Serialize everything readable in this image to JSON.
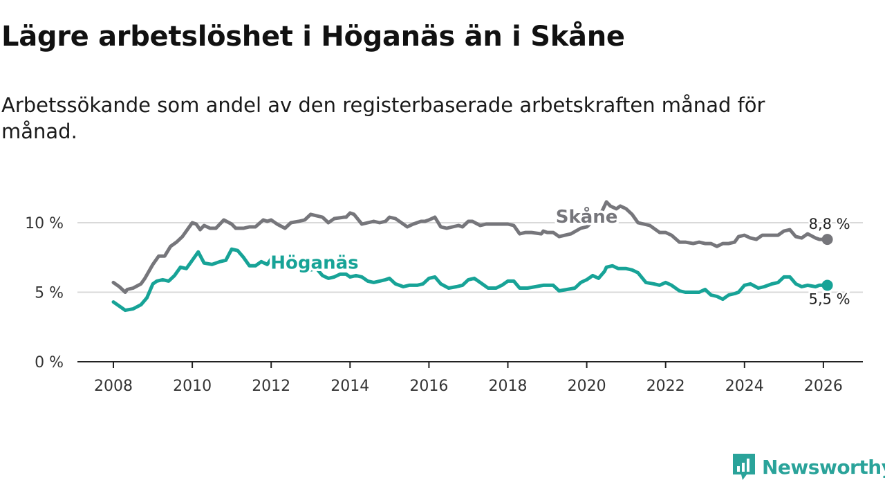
{
  "title": "Lägre arbetslöshet i Höganäs än i Skåne",
  "subtitle": "Arbetssökande som andel av den registerbaserade arbetskraften månad för månad.",
  "brand": {
    "name": "Newsworthy",
    "icon": "newsworthy-logo-icon",
    "color": "#2aa39a"
  },
  "chart_data": {
    "type": "line",
    "title": "Lägre arbetslöshet i Höganäs än i Skåne",
    "xlabel": "",
    "ylabel": "",
    "xlim": [
      2007.3,
      2027.0
    ],
    "ylim": [
      0,
      11.5
    ],
    "x_ticks": [
      {
        "value": 2008,
        "label": "2008"
      },
      {
        "value": 2010,
        "label": "2010"
      },
      {
        "value": 2012,
        "label": "2012"
      },
      {
        "value": 2014,
        "label": "2014"
      },
      {
        "value": 2016,
        "label": "2016"
      },
      {
        "value": 2018,
        "label": "2018"
      },
      {
        "value": 2020,
        "label": "2020"
      },
      {
        "value": 2022,
        "label": "2022"
      },
      {
        "value": 2024,
        "label": "2024"
      },
      {
        "value": 2026,
        "label": "2026"
      }
    ],
    "y_ticks": [
      {
        "value": 0,
        "label": "0 %"
      },
      {
        "value": 5,
        "label": "5 %"
      },
      {
        "value": 10,
        "label": "10 %"
      }
    ],
    "series": [
      {
        "name": "Skåne",
        "color": "#76767b",
        "end_label": "8,8 %",
        "x": [
          2008.0,
          2008.15,
          2008.3,
          2008.35,
          2008.5,
          2008.7,
          2008.8,
          2009.0,
          2009.15,
          2009.3,
          2009.45,
          2009.6,
          2009.75,
          2009.9,
          2010.0,
          2010.1,
          2010.2,
          2010.3,
          2010.45,
          2010.6,
          2010.8,
          2011.0,
          2011.1,
          2011.3,
          2011.45,
          2011.6,
          2011.8,
          2011.9,
          2012.0,
          2012.15,
          2012.35,
          2012.5,
          2012.7,
          2012.85,
          2013.0,
          2013.15,
          2013.3,
          2013.45,
          2013.6,
          2013.85,
          2013.9,
          2014.0,
          2014.1,
          2014.3,
          2014.45,
          2014.6,
          2014.75,
          2014.9,
          2015.0,
          2015.15,
          2015.3,
          2015.45,
          2015.6,
          2015.8,
          2015.9,
          2016.0,
          2016.15,
          2016.3,
          2016.45,
          2016.6,
          2016.75,
          2016.85,
          2017.0,
          2017.1,
          2017.3,
          2017.45,
          2017.6,
          2017.85,
          2018.0,
          2018.15,
          2018.3,
          2018.45,
          2018.6,
          2018.85,
          2018.9,
          2019.0,
          2019.15,
          2019.3,
          2019.45,
          2019.6,
          2019.85,
          2020.0,
          2020.15,
          2020.25,
          2020.4,
          2020.5,
          2020.6,
          2020.75,
          2020.85,
          2021.0,
          2021.15,
          2021.3,
          2021.45,
          2021.6,
          2021.85,
          2022.0,
          2022.15,
          2022.35,
          2022.5,
          2022.7,
          2022.85,
          2023.0,
          2023.15,
          2023.3,
          2023.45,
          2023.6,
          2023.75,
          2023.85,
          2024.0,
          2024.15,
          2024.3,
          2024.45,
          2024.6,
          2024.85,
          2025.0,
          2025.15,
          2025.3,
          2025.45,
          2025.6,
          2025.8,
          2025.9,
          2026.0,
          2026.1
        ],
        "values": [
          5.7,
          5.4,
          5.0,
          5.2,
          5.3,
          5.6,
          6.0,
          7.0,
          7.6,
          7.6,
          8.3,
          8.6,
          9.0,
          9.6,
          10.0,
          9.9,
          9.5,
          9.8,
          9.6,
          9.6,
          10.2,
          9.9,
          9.6,
          9.6,
          9.7,
          9.7,
          10.2,
          10.1,
          10.2,
          9.9,
          9.6,
          10.0,
          10.1,
          10.2,
          10.6,
          10.5,
          10.4,
          10.0,
          10.3,
          10.4,
          10.4,
          10.7,
          10.6,
          9.9,
          10.0,
          10.1,
          10.0,
          10.1,
          10.4,
          10.3,
          10.0,
          9.7,
          9.9,
          10.1,
          10.1,
          10.2,
          10.4,
          9.7,
          9.6,
          9.7,
          9.8,
          9.7,
          10.1,
          10.1,
          9.8,
          9.9,
          9.9,
          9.9,
          9.9,
          9.8,
          9.2,
          9.3,
          9.3,
          9.2,
          9.4,
          9.3,
          9.3,
          9.0,
          9.1,
          9.2,
          9.6,
          9.7,
          10.1,
          10.2,
          10.9,
          11.5,
          11.2,
          11.0,
          11.2,
          11.0,
          10.6,
          10.0,
          9.9,
          9.8,
          9.3,
          9.3,
          9.1,
          8.6,
          8.6,
          8.5,
          8.6,
          8.5,
          8.5,
          8.3,
          8.5,
          8.5,
          8.6,
          9.0,
          9.1,
          8.9,
          8.8,
          9.1,
          9.1,
          9.1,
          9.4,
          9.5,
          9.0,
          8.9,
          9.2,
          8.9,
          8.8,
          8.8,
          8.8
        ]
      },
      {
        "name": "Höganäs",
        "color": "#17a397",
        "end_label": "5,5 %",
        "x": [
          2008.0,
          2008.15,
          2008.3,
          2008.5,
          2008.7,
          2008.85,
          2009.0,
          2009.1,
          2009.25,
          2009.4,
          2009.55,
          2009.7,
          2009.85,
          2010.0,
          2010.15,
          2010.3,
          2010.5,
          2010.7,
          2010.85,
          2011.0,
          2011.15,
          2011.3,
          2011.45,
          2011.6,
          2011.75,
          2011.9,
          2012.0,
          2012.15,
          2012.35,
          2012.5,
          2012.65,
          2012.75,
          2012.9,
          2013.0,
          2013.15,
          2013.3,
          2013.45,
          2013.6,
          2013.75,
          2013.9,
          2014.0,
          2014.15,
          2014.3,
          2014.45,
          2014.6,
          2014.75,
          2014.9,
          2015.0,
          2015.15,
          2015.35,
          2015.5,
          2015.7,
          2015.85,
          2016.0,
          2016.15,
          2016.3,
          2016.5,
          2016.7,
          2016.85,
          2017.0,
          2017.15,
          2017.3,
          2017.5,
          2017.7,
          2017.85,
          2018.0,
          2018.15,
          2018.3,
          2018.5,
          2018.7,
          2018.9,
          2019.0,
          2019.15,
          2019.3,
          2019.5,
          2019.7,
          2019.85,
          2020.0,
          2020.15,
          2020.3,
          2020.45,
          2020.5,
          2020.65,
          2020.8,
          2021.0,
          2021.15,
          2021.3,
          2021.5,
          2021.7,
          2021.85,
          2022.0,
          2022.15,
          2022.35,
          2022.5,
          2022.7,
          2022.85,
          2023.0,
          2023.15,
          2023.3,
          2023.45,
          2023.6,
          2023.75,
          2023.85,
          2024.0,
          2024.15,
          2024.35,
          2024.5,
          2024.7,
          2024.85,
          2025.0,
          2025.15,
          2025.3,
          2025.45,
          2025.6,
          2025.8,
          2025.9,
          2026.0,
          2026.1
        ],
        "values": [
          4.3,
          4.0,
          3.7,
          3.8,
          4.1,
          4.6,
          5.6,
          5.8,
          5.9,
          5.8,
          6.2,
          6.8,
          6.7,
          7.3,
          7.9,
          7.1,
          7.0,
          7.2,
          7.3,
          8.1,
          8.0,
          7.5,
          6.9,
          6.9,
          7.2,
          7.0,
          7.4,
          7.4,
          6.9,
          6.8,
          7.0,
          7.1,
          6.9,
          6.6,
          6.7,
          6.2,
          6.0,
          6.1,
          6.3,
          6.3,
          6.1,
          6.2,
          6.1,
          5.8,
          5.7,
          5.8,
          5.9,
          6.0,
          5.6,
          5.4,
          5.5,
          5.5,
          5.6,
          6.0,
          6.1,
          5.6,
          5.3,
          5.4,
          5.5,
          5.9,
          6.0,
          5.7,
          5.3,
          5.3,
          5.5,
          5.8,
          5.8,
          5.3,
          5.3,
          5.4,
          5.5,
          5.5,
          5.5,
          5.1,
          5.2,
          5.3,
          5.7,
          5.9,
          6.2,
          6.0,
          6.5,
          6.8,
          6.9,
          6.7,
          6.7,
          6.6,
          6.4,
          5.7,
          5.6,
          5.5,
          5.7,
          5.5,
          5.1,
          5.0,
          5.0,
          5.0,
          5.2,
          4.8,
          4.7,
          4.5,
          4.8,
          4.9,
          5.0,
          5.5,
          5.6,
          5.3,
          5.4,
          5.6,
          5.7,
          6.1,
          6.1,
          5.6,
          5.4,
          5.5,
          5.4,
          5.5,
          5.5,
          5.5
        ]
      }
    ],
    "annotations": [
      {
        "text": "Skåne",
        "series": "Skåne",
        "x": 2020.0,
        "y": 10.0
      },
      {
        "text": "Höganäs",
        "series": "Höganäs",
        "x": 2013.1,
        "y": 6.7
      }
    ]
  }
}
